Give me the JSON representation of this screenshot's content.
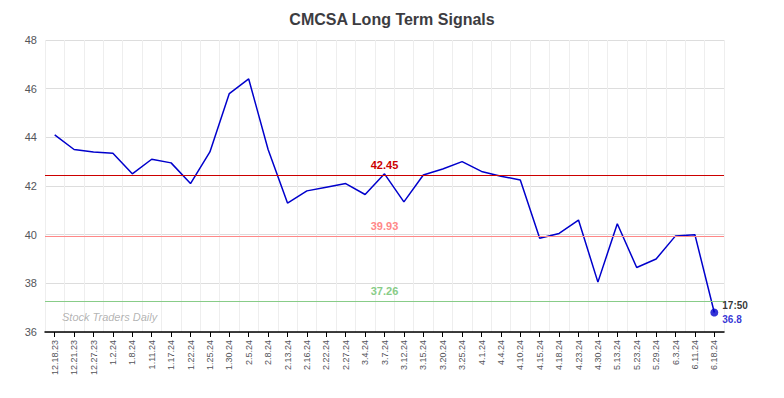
{
  "chart_data": {
    "type": "line",
    "title": "CMCSA Long Term Signals",
    "categories": [
      "12.18.23",
      "12.21.23",
      "12.27.23",
      "1.2.24",
      "1.8.24",
      "1.11.24",
      "1.17.24",
      "1.22.24",
      "1.25.24",
      "1.30.24",
      "2.5.24",
      "2.8.24",
      "2.13.24",
      "2.16.24",
      "2.22.24",
      "2.27.24",
      "3.4.24",
      "3.7.24",
      "3.12.24",
      "3.15.24",
      "3.20.24",
      "3.25.24",
      "4.1.24",
      "4.4.24",
      "4.10.24",
      "4.15.24",
      "4.18.24",
      "4.23.24",
      "4.30.24",
      "5.13.24",
      "5.23.24",
      "5.29.24",
      "6.3.24",
      "6.11.24",
      "6.18.24"
    ],
    "values": [
      44.1,
      43.5,
      43.4,
      43.35,
      42.5,
      43.1,
      42.95,
      42.1,
      43.4,
      45.8,
      46.4,
      43.5,
      41.3,
      41.8,
      41.95,
      42.1,
      41.65,
      42.5,
      41.35,
      42.45,
      42.7,
      43.0,
      42.6,
      42.4,
      42.25,
      39.85,
      40.05,
      40.6,
      38.05,
      40.45,
      38.65,
      39.0,
      39.95,
      40.0,
      36.8
    ],
    "color": "#0000cc",
    "ylim": [
      36,
      48
    ],
    "yticks": [
      36,
      38,
      40,
      42,
      44,
      46,
      48
    ],
    "grid": true,
    "hlines": [
      {
        "value": 42.45,
        "color": "#cc0000"
      },
      {
        "value": 39.93,
        "color": "#ff8888"
      },
      {
        "value": 37.26,
        "color": "#88cc88"
      }
    ],
    "last_point": {
      "value": 36.8,
      "time": "17:50"
    },
    "watermark": "Stock Traders Daily"
  }
}
